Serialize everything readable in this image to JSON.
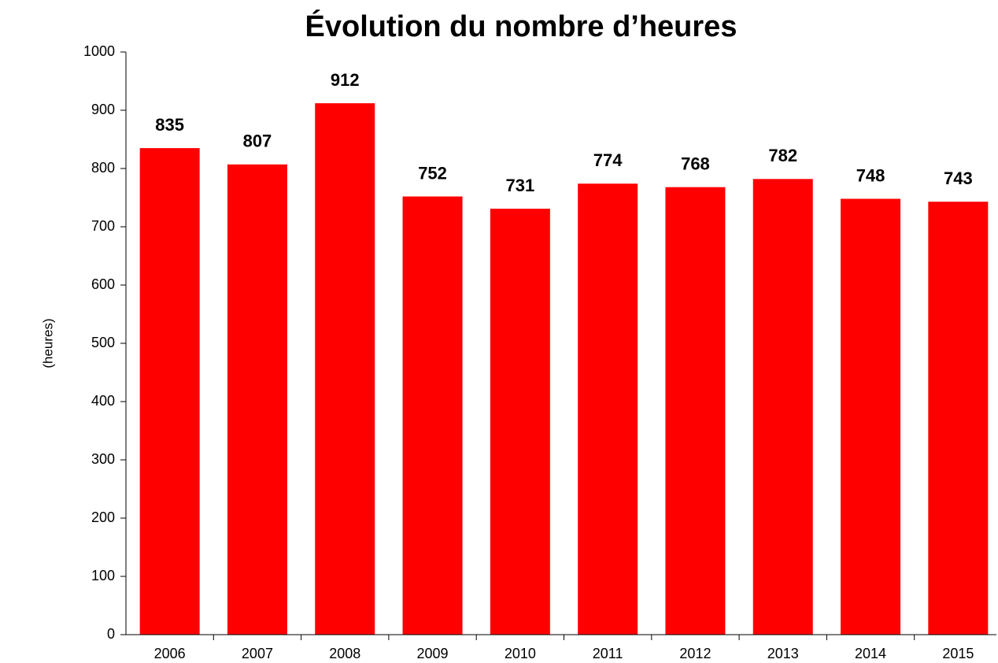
{
  "chart_data": {
    "type": "bar",
    "title": "Évolution du nombre d’heures",
    "y_label": "(heures)",
    "categories": [
      "2006",
      "2007",
      "2008",
      "2009",
      "2010",
      "2011",
      "2012",
      "2013",
      "2014",
      "2015"
    ],
    "values": [
      835,
      807,
      912,
      752,
      731,
      774,
      768,
      782,
      748,
      743
    ],
    "color": "#ff0000",
    "ylim": [
      0,
      1000
    ],
    "yticks": [
      0,
      100,
      200,
      300,
      400,
      500,
      600,
      700,
      800,
      900,
      1000
    ],
    "grid": false
  }
}
